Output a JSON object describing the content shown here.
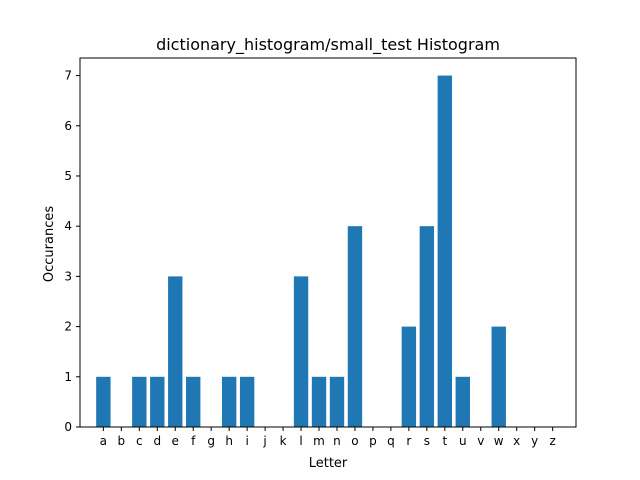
{
  "chart_data": {
    "type": "bar",
    "title": "dictionary_histogram/small_test Histogram",
    "xlabel": "Letter",
    "ylabel": "Occurances",
    "categories": [
      "a",
      "b",
      "c",
      "d",
      "e",
      "f",
      "g",
      "h",
      "i",
      "j",
      "k",
      "l",
      "m",
      "n",
      "o",
      "p",
      "q",
      "r",
      "s",
      "t",
      "u",
      "v",
      "w",
      "x",
      "y",
      "z"
    ],
    "values": [
      1,
      0,
      1,
      1,
      3,
      1,
      0,
      1,
      1,
      0,
      0,
      3,
      1,
      1,
      4,
      0,
      0,
      2,
      4,
      7,
      1,
      0,
      2,
      0,
      0,
      0
    ],
    "ylim": [
      0,
      7.35
    ],
    "yticks": [
      0,
      1,
      2,
      3,
      4,
      5,
      6,
      7
    ],
    "grid": false,
    "bar_color": "#1f77b4"
  }
}
